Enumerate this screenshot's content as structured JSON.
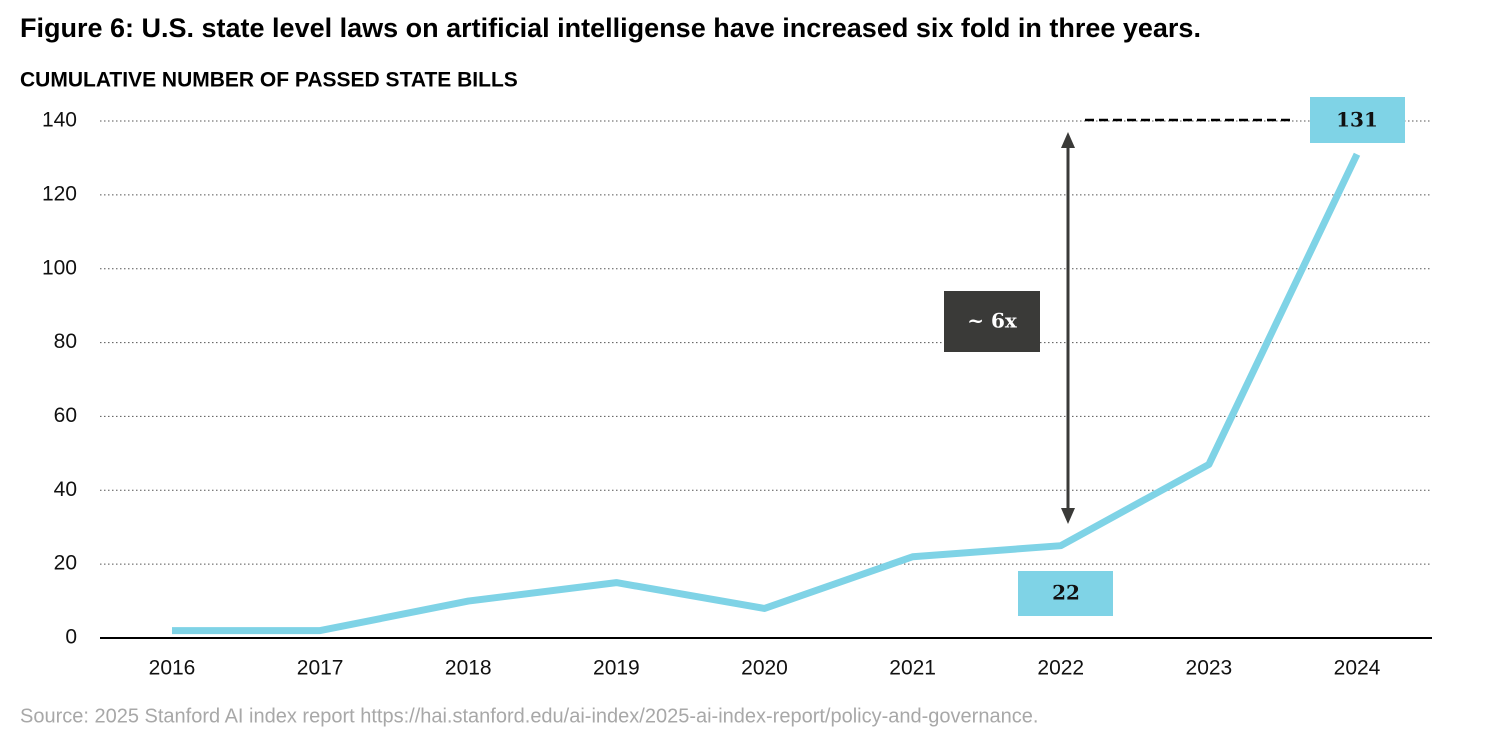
{
  "chart_data": {
    "type": "line",
    "title": "Figure 6: U.S. state level laws on artificial intelligense have increased six fold in three years.",
    "subtitle": "CUMULATIVE NUMBER OF PASSED STATE BILLS",
    "source": "Source: 2025 Stanford AI index report https://hai.stanford.edu/ai-index/2025-ai-index-report/policy-and-governance.",
    "categories": [
      "2016",
      "2017",
      "2018",
      "2019",
      "2020",
      "2021",
      "2022",
      "2023",
      "2024"
    ],
    "values": [
      2,
      2,
      10,
      15,
      8,
      22,
      25,
      47,
      131
    ],
    "color": "#7fd3e6",
    "ylim": [
      0,
      140
    ],
    "yticks": [
      0,
      20,
      40,
      60,
      80,
      100,
      120,
      140
    ],
    "grid": true,
    "annotations": [
      "~ 6x",
      "22",
      "131"
    ]
  }
}
